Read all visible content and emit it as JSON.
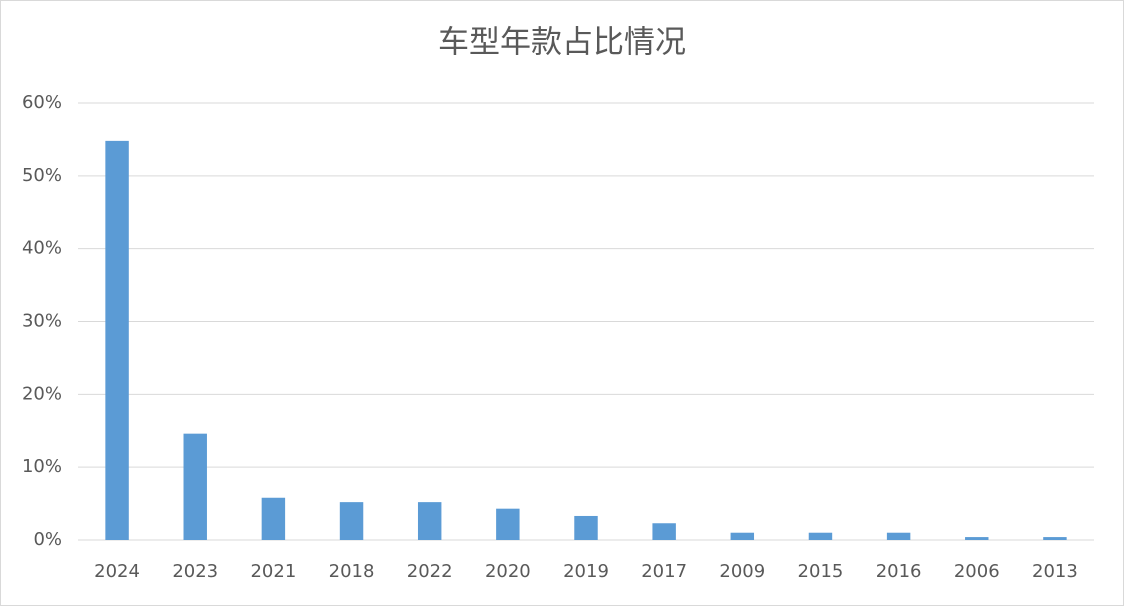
{
  "chart_data": {
    "type": "bar",
    "title": "车型年款占比情况",
    "categories": [
      "2024",
      "2023",
      "2021",
      "2018",
      "2022",
      "2020",
      "2019",
      "2017",
      "2009",
      "2015",
      "2016",
      "2006",
      "2013"
    ],
    "values": [
      54.8,
      14.6,
      5.8,
      5.2,
      5.2,
      4.3,
      3.3,
      2.3,
      1.0,
      1.0,
      1.0,
      0.4,
      0.4
    ],
    "color": "#5b9bd5",
    "ylim": [
      0,
      60
    ],
    "yticks": [
      {
        "value": 0,
        "label": "0%"
      },
      {
        "value": 10,
        "label": "10%"
      },
      {
        "value": 20,
        "label": "20%"
      },
      {
        "value": 30,
        "label": "30%"
      },
      {
        "value": 40,
        "label": "40%"
      },
      {
        "value": 50,
        "label": "50%"
      },
      {
        "value": 60,
        "label": "60%"
      }
    ],
    "grid": true
  }
}
